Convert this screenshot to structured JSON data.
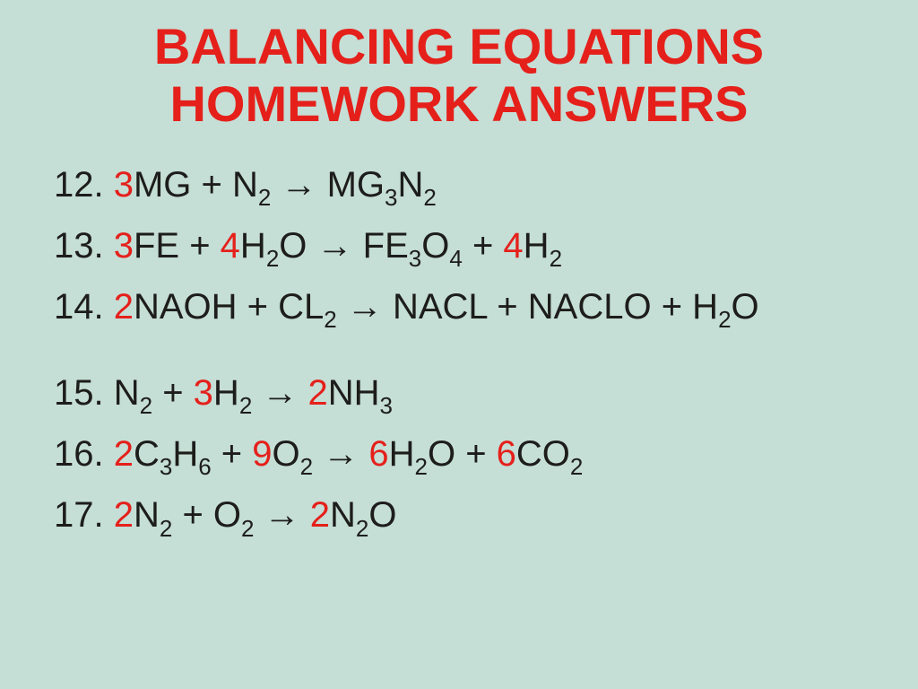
{
  "title_line1": "BALANCING EQUATIONS",
  "title_line2": "HOMEWORK ANSWERS",
  "background_color": "#c5ded6",
  "title_color": "#e5201b",
  "text_color": "#1d1d1b",
  "coefficient_color": "#e5201b",
  "font_family": "Comic Sans MS",
  "title_fontsize": 56,
  "body_fontsize": 40,
  "equations": [
    {
      "num": "12.",
      "tokens": [
        {
          "t": "coef",
          "v": "3"
        },
        {
          "t": "txt",
          "v": "MG + N"
        },
        {
          "t": "sub",
          "v": "2"
        },
        {
          "t": "arrow"
        },
        {
          "t": "txt",
          "v": "MG"
        },
        {
          "t": "sub",
          "v": "3"
        },
        {
          "t": "txt",
          "v": "N"
        },
        {
          "t": "sub",
          "v": "2"
        }
      ]
    },
    {
      "num": "13.",
      "tokens": [
        {
          "t": "coef",
          "v": "3"
        },
        {
          "t": "txt",
          "v": "FE + "
        },
        {
          "t": "coef",
          "v": "4"
        },
        {
          "t": "txt",
          "v": "H"
        },
        {
          "t": "sub",
          "v": "2"
        },
        {
          "t": "txt",
          "v": "O"
        },
        {
          "t": "arrow"
        },
        {
          "t": "txt",
          "v": "FE"
        },
        {
          "t": "sub",
          "v": "3"
        },
        {
          "t": "txt",
          "v": "O"
        },
        {
          "t": "sub",
          "v": "4"
        },
        {
          "t": "txt",
          "v": " + "
        },
        {
          "t": "coef",
          "v": "4"
        },
        {
          "t": "txt",
          "v": "H"
        },
        {
          "t": "sub",
          "v": "2"
        }
      ]
    },
    {
      "num": "14.",
      "tokens": [
        {
          "t": "coef",
          "v": "2"
        },
        {
          "t": "txt",
          "v": "NAOH + CL"
        },
        {
          "t": "sub",
          "v": "2"
        },
        {
          "t": "arrow"
        },
        {
          "t": "txt",
          "v": "NACL + NACLO + H"
        },
        {
          "t": "sub",
          "v": "2"
        },
        {
          "t": "txt",
          "v": "O"
        }
      ]
    },
    {
      "spacer": true
    },
    {
      "num": "15.",
      "tokens": [
        {
          "t": "txt",
          "v": "N"
        },
        {
          "t": "sub",
          "v": "2"
        },
        {
          "t": "txt",
          "v": " + "
        },
        {
          "t": "coef",
          "v": "3"
        },
        {
          "t": "txt",
          "v": "H"
        },
        {
          "t": "sub",
          "v": "2"
        },
        {
          "t": "arrow"
        },
        {
          "t": "coef",
          "v": "2"
        },
        {
          "t": "txt",
          "v": "NH"
        },
        {
          "t": "sub",
          "v": "3"
        }
      ]
    },
    {
      "num": "16.",
      "tokens": [
        {
          "t": "coef",
          "v": "2"
        },
        {
          "t": "txt",
          "v": "C"
        },
        {
          "t": "sub",
          "v": "3"
        },
        {
          "t": "txt",
          "v": "H"
        },
        {
          "t": "sub",
          "v": "6"
        },
        {
          "t": "txt",
          "v": " +  "
        },
        {
          "t": "coef",
          "v": "9"
        },
        {
          "t": "txt",
          "v": "O"
        },
        {
          "t": "sub",
          "v": "2"
        },
        {
          "t": "arrow"
        },
        {
          "t": "coef",
          "v": "6"
        },
        {
          "t": "txt",
          "v": "H"
        },
        {
          "t": "sub",
          "v": "2"
        },
        {
          "t": "txt",
          "v": "O + "
        },
        {
          "t": "coef",
          "v": "6"
        },
        {
          "t": "txt",
          "v": "CO"
        },
        {
          "t": "sub",
          "v": "2"
        }
      ]
    },
    {
      "num": "17.",
      "tokens": [
        {
          "t": "coef",
          "v": "2"
        },
        {
          "t": "txt",
          "v": "N"
        },
        {
          "t": "sub",
          "v": "2"
        },
        {
          "t": "txt",
          "v": " + O"
        },
        {
          "t": "sub",
          "v": "2"
        },
        {
          "t": "arrow"
        },
        {
          "t": "coef",
          "v": "2"
        },
        {
          "t": "txt",
          "v": "N"
        },
        {
          "t": "sub",
          "v": "2"
        },
        {
          "t": "txt",
          "v": "O"
        }
      ]
    }
  ],
  "arrow_glyph": " → "
}
